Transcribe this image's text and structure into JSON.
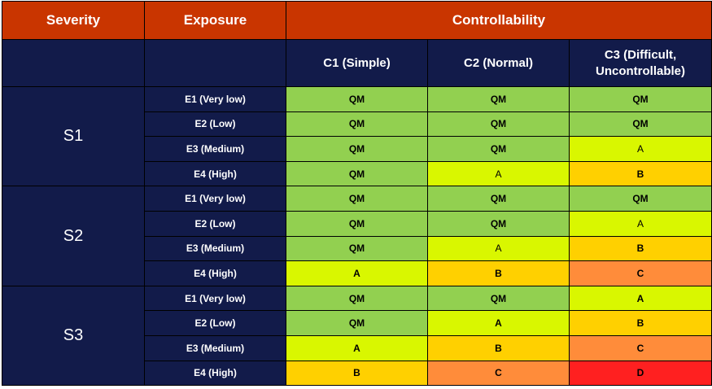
{
  "header": {
    "severity": "Severity",
    "exposure": "Exposure",
    "controllability": "Controllability"
  },
  "columns": [
    {
      "line1": "C1 (Simple)",
      "line2": ""
    },
    {
      "line1": "C2 (Normal)",
      "line2": ""
    },
    {
      "line1": "C3 (Difficult,",
      "line2": "Uncontrollable)"
    }
  ],
  "colors": {
    "header_orange": "#c93500",
    "header_navy": "#121b4a",
    "QM": "#92d050",
    "A": "#d9f700",
    "B": "#ffd000",
    "C": "#ff8c3a",
    "D": "#ff2020"
  },
  "groups": [
    {
      "severity": "S1",
      "rows": [
        {
          "exposure": "E1 (Very low)",
          "cells": [
            "QM",
            "QM",
            "QM"
          ]
        },
        {
          "exposure": "E2 (Low)",
          "cells": [
            "QM",
            "QM",
            "QM"
          ]
        },
        {
          "exposure": "E3 (Medium)",
          "cells": [
            "QM",
            "QM",
            "A"
          ]
        },
        {
          "exposure": "E4 (High)",
          "cells": [
            "QM",
            "A",
            "B"
          ]
        }
      ]
    },
    {
      "severity": "S2",
      "rows": [
        {
          "exposure": "E1 (Very low)",
          "cells": [
            "QM",
            "QM",
            "QM"
          ]
        },
        {
          "exposure": "E2 (Low)",
          "cells": [
            "QM",
            "QM",
            "A"
          ]
        },
        {
          "exposure": "E3 (Medium)",
          "cells": [
            "QM",
            "A",
            "B"
          ]
        },
        {
          "exposure": "E4 (High)",
          "cells": [
            "A",
            "B",
            "C"
          ]
        }
      ]
    },
    {
      "severity": "S3",
      "rows": [
        {
          "exposure": "E1 (Very low)",
          "cells": [
            "QM",
            "QM",
            "A"
          ]
        },
        {
          "exposure": "E2 (Low)",
          "cells": [
            "QM",
            "A",
            "B"
          ]
        },
        {
          "exposure": "E3 (Medium)",
          "cells": [
            "A",
            "B",
            "C"
          ]
        },
        {
          "exposure": "E4 (High)",
          "cells": [
            "B",
            "C",
            "D"
          ]
        }
      ]
    }
  ]
}
